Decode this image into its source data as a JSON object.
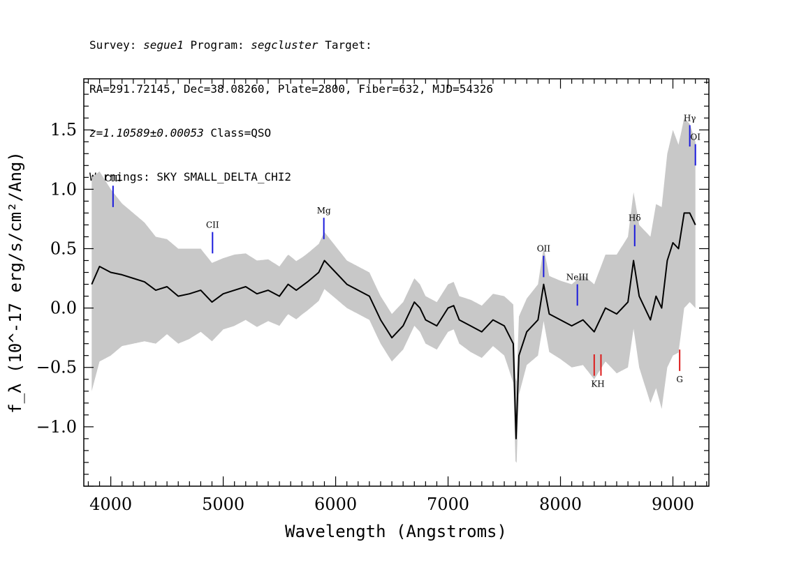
{
  "header": {
    "l1_survey_key": "Survey:",
    "l1_survey": "segue1",
    "l1_program_key": "Program:",
    "l1_program": "segcluster",
    "l1_target_key": "Target:",
    "line2": "RA=291.72145, Dec=38.08260, Plate=2800, Fiber=632, MJD=54326",
    "l3_z": "z=1.10589±0.00053",
    "l3_class": "Class=QSO",
    "line4": "Warnings: SKY SMALL_DELTA_CHI2"
  },
  "chart_data": {
    "type": "line",
    "xlabel": "Wavelength (Angstroms)",
    "ylabel": "f_λ (10^-17 erg/s/cm²/Ang)",
    "xlim": [
      3760,
      9320
    ],
    "ylim": [
      -1.5,
      1.93
    ],
    "xticks": [
      4000,
      5000,
      6000,
      7000,
      8000,
      9000
    ],
    "xtick_labels": [
      "4000",
      "5000",
      "6000",
      "7000",
      "8000",
      "9000"
    ],
    "yticks": [
      -1.0,
      -0.5,
      0.0,
      0.5,
      1.0,
      1.5
    ],
    "ytick_labels": [
      "−1.0",
      "−0.5",
      "0.0",
      "0.5",
      "1.0",
      "1.5"
    ],
    "grid": false,
    "colors": {
      "flux": "#000000",
      "error": "#c8c8c8",
      "emission": "#1a1adc",
      "absorption": "#dc1a1a"
    },
    "series": [
      {
        "role": "flux",
        "x": [
          3830,
          3900,
          4000,
          4100,
          4200,
          4300,
          4400,
          4500,
          4600,
          4700,
          4800,
          4900,
          5000,
          5100,
          5200,
          5300,
          5400,
          5500,
          5577,
          5650,
          5750,
          5850,
          5900,
          6000,
          6100,
          6200,
          6300,
          6400,
          6500,
          6600,
          6700,
          6750,
          6800,
          6900,
          7000,
          7050,
          7100,
          7200,
          7300,
          7400,
          7500,
          7580,
          7605,
          7630,
          7700,
          7800,
          7850,
          7900,
          8000,
          8100,
          8200,
          8300,
          8400,
          8500,
          8600,
          8650,
          8700,
          8800,
          8850,
          8900,
          8950,
          9000,
          9050,
          9100,
          9150,
          9200
        ],
        "y": [
          0.2,
          0.35,
          0.3,
          0.28,
          0.25,
          0.22,
          0.15,
          0.18,
          0.1,
          0.12,
          0.15,
          0.05,
          0.12,
          0.15,
          0.18,
          0.12,
          0.15,
          0.1,
          0.2,
          0.15,
          0.22,
          0.3,
          0.4,
          0.3,
          0.2,
          0.15,
          0.1,
          -0.1,
          -0.25,
          -0.15,
          0.05,
          0.0,
          -0.1,
          -0.15,
          0.0,
          0.02,
          -0.1,
          -0.15,
          -0.2,
          -0.1,
          -0.15,
          -0.3,
          -1.1,
          -0.4,
          -0.2,
          -0.1,
          0.2,
          -0.05,
          -0.1,
          -0.15,
          -0.1,
          -0.2,
          0.0,
          -0.05,
          0.05,
          0.4,
          0.1,
          -0.1,
          0.1,
          0.0,
          0.4,
          0.55,
          0.5,
          0.8,
          0.8,
          0.7
        ]
      },
      {
        "role": "error",
        "x": [
          3830,
          3900,
          4000,
          4100,
          4200,
          4300,
          4400,
          4500,
          4600,
          4700,
          4800,
          4900,
          5000,
          5100,
          5200,
          5300,
          5400,
          5500,
          5600,
          5700,
          5800,
          5900,
          6000,
          6100,
          6200,
          6300,
          6400,
          6500,
          6600,
          6700,
          6800,
          6900,
          7000,
          7100,
          7200,
          7300,
          7400,
          7500,
          7600,
          7700,
          7800,
          7900,
          8000,
          8100,
          8200,
          8300,
          8400,
          8500,
          8600,
          8700,
          8800,
          8900,
          9000,
          9100,
          9200
        ],
        "y": [
          0.9,
          0.8,
          0.7,
          0.6,
          0.55,
          0.5,
          0.45,
          0.4,
          0.4,
          0.38,
          0.35,
          0.33,
          0.3,
          0.3,
          0.28,
          0.28,
          0.26,
          0.25,
          0.25,
          0.24,
          0.24,
          0.24,
          0.22,
          0.2,
          0.2,
          0.2,
          0.2,
          0.2,
          0.2,
          0.2,
          0.2,
          0.2,
          0.2,
          0.2,
          0.22,
          0.22,
          0.22,
          0.25,
          0.35,
          0.28,
          0.3,
          0.32,
          0.33,
          0.35,
          0.38,
          0.4,
          0.45,
          0.5,
          0.55,
          0.6,
          0.7,
          0.85,
          0.95,
          0.8,
          0.7
        ]
      }
    ],
    "line_labels": [
      {
        "label": "CIII",
        "x": 4020,
        "kind": "emission",
        "tick_y": [
          0.85,
          1.03
        ]
      },
      {
        "label": "CII",
        "x": 4905,
        "kind": "emission",
        "tick_y": [
          0.46,
          0.64
        ]
      },
      {
        "label": "Mg",
        "x": 5895,
        "kind": "emission",
        "tick_y": [
          0.58,
          0.76
        ]
      },
      {
        "label": "OII",
        "x": 7850,
        "kind": "emission",
        "tick_y": [
          0.26,
          0.44
        ]
      },
      {
        "label": "NeIII",
        "x": 8150,
        "kind": "emission",
        "tick_y": [
          0.02,
          0.2
        ]
      },
      {
        "label": "Hδ",
        "x": 8660,
        "kind": "emission",
        "tick_y": [
          0.52,
          0.7
        ]
      },
      {
        "label": "Hγ",
        "x": 9150,
        "kind": "emission",
        "tick_y": [
          1.36,
          1.54
        ]
      },
      {
        "label": "OI",
        "x": 9200,
        "kind": "emission",
        "tick_y": [
          1.2,
          1.38
        ]
      },
      {
        "label": "K",
        "x": 8300,
        "kind": "absorption",
        "tick_y": [
          -0.57,
          -0.39
        ]
      },
      {
        "label": "H",
        "x": 8360,
        "kind": "absorption",
        "tick_y": [
          -0.57,
          -0.39
        ]
      },
      {
        "label": "G",
        "x": 9060,
        "kind": "absorption",
        "tick_y": [
          -0.53,
          -0.35
        ]
      }
    ]
  }
}
